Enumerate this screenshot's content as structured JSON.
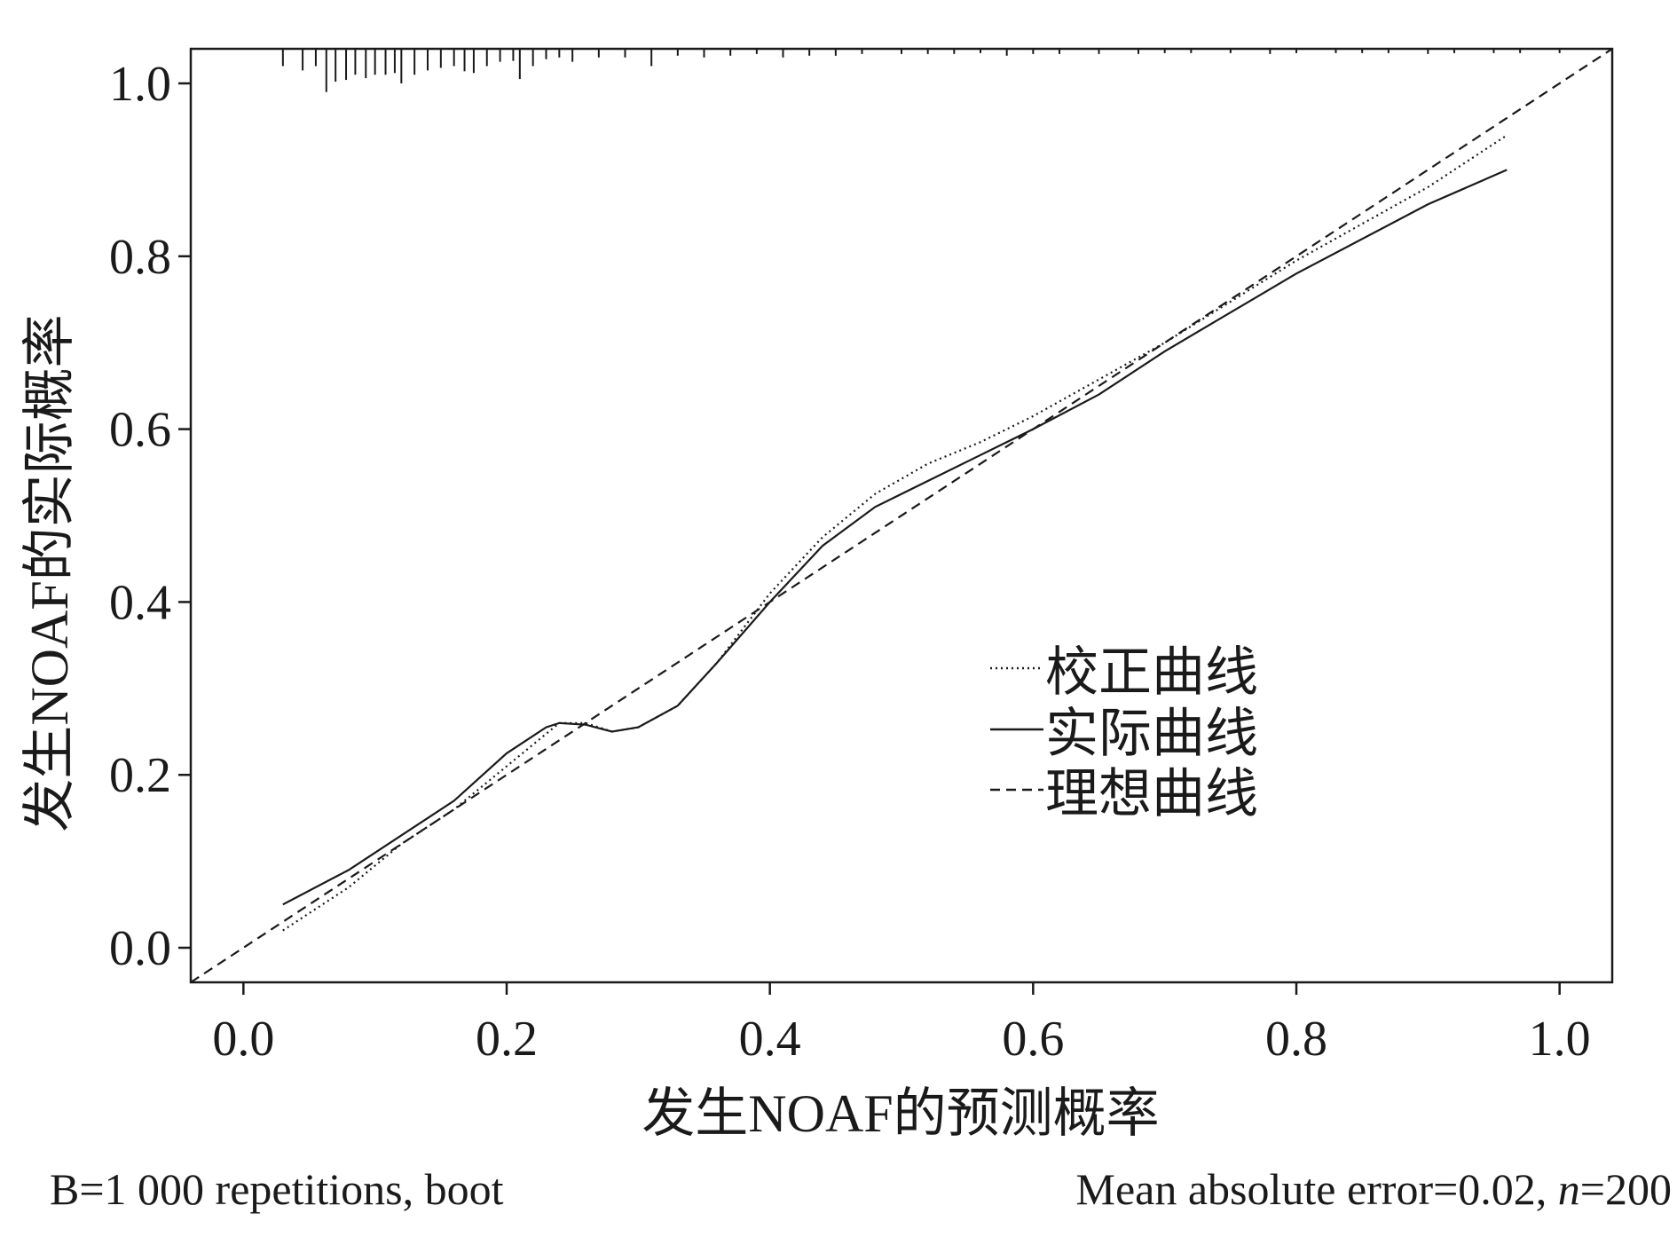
{
  "chart_data": {
    "type": "line",
    "title": "",
    "xlabel": "发生NOAF的预测概率",
    "ylabel": "发生NOAF的实际概率",
    "xlim": [
      -0.04,
      1.04
    ],
    "ylim": [
      -0.04,
      1.04
    ],
    "x_ticks": [
      "0.0",
      "0.2",
      "0.4",
      "0.6",
      "0.8",
      "1.0"
    ],
    "y_ticks": [
      "0.0",
      "0.2",
      "0.4",
      "0.6",
      "0.8",
      "1.0"
    ],
    "grid": false,
    "legend_position": "center-right",
    "series": [
      {
        "name": "校正曲线",
        "style": "dotted",
        "color": "#1a1a1a",
        "points": [
          [
            0.03,
            0.02
          ],
          [
            0.08,
            0.07
          ],
          [
            0.12,
            0.12
          ],
          [
            0.16,
            0.16
          ],
          [
            0.2,
            0.21
          ],
          [
            0.24,
            0.26
          ],
          [
            0.26,
            0.26
          ],
          [
            0.28,
            0.25
          ],
          [
            0.3,
            0.255
          ],
          [
            0.33,
            0.28
          ],
          [
            0.36,
            0.33
          ],
          [
            0.4,
            0.41
          ],
          [
            0.44,
            0.475
          ],
          [
            0.48,
            0.525
          ],
          [
            0.52,
            0.56
          ],
          [
            0.56,
            0.585
          ],
          [
            0.6,
            0.615
          ],
          [
            0.7,
            0.7
          ],
          [
            0.8,
            0.795
          ],
          [
            0.9,
            0.88
          ],
          [
            0.96,
            0.94
          ]
        ]
      },
      {
        "name": "实际曲线",
        "style": "solid",
        "color": "#1a1a1a",
        "points": [
          [
            0.03,
            0.05
          ],
          [
            0.08,
            0.09
          ],
          [
            0.12,
            0.13
          ],
          [
            0.16,
            0.17
          ],
          [
            0.2,
            0.225
          ],
          [
            0.23,
            0.255
          ],
          [
            0.24,
            0.26
          ],
          [
            0.26,
            0.258
          ],
          [
            0.28,
            0.25
          ],
          [
            0.3,
            0.255
          ],
          [
            0.33,
            0.28
          ],
          [
            0.36,
            0.33
          ],
          [
            0.4,
            0.4
          ],
          [
            0.44,
            0.465
          ],
          [
            0.48,
            0.51
          ],
          [
            0.52,
            0.54
          ],
          [
            0.56,
            0.57
          ],
          [
            0.6,
            0.6
          ],
          [
            0.65,
            0.64
          ],
          [
            0.7,
            0.69
          ],
          [
            0.8,
            0.78
          ],
          [
            0.9,
            0.86
          ],
          [
            0.96,
            0.9
          ]
        ]
      },
      {
        "name": "理想曲线",
        "style": "dashed",
        "color": "#1a1a1a",
        "points": [
          [
            -0.04,
            -0.04
          ],
          [
            1.04,
            1.04
          ]
        ]
      }
    ],
    "rug": {
      "position": "top",
      "x": [
        0.03,
        0.045,
        0.055,
        0.063,
        0.07,
        0.078,
        0.085,
        0.093,
        0.1,
        0.108,
        0.115,
        0.12,
        0.13,
        0.14,
        0.15,
        0.16,
        0.168,
        0.175,
        0.185,
        0.195,
        0.205,
        0.21,
        0.22,
        0.23,
        0.24,
        0.25,
        0.27,
        0.29,
        0.31,
        0.33,
        0.35,
        0.37,
        0.39,
        0.41,
        0.43,
        0.45,
        0.47,
        0.5,
        0.52,
        0.54,
        0.56,
        0.58,
        0.6,
        0.62,
        0.65,
        0.68,
        0.7,
        0.72,
        0.75,
        0.78,
        0.8,
        0.83,
        0.85,
        0.87,
        0.9,
        0.92,
        0.95,
        0.97,
        1.0
      ],
      "lengths": [
        0.02,
        0.025,
        0.02,
        0.05,
        0.038,
        0.036,
        0.03,
        0.034,
        0.03,
        0.03,
        0.028,
        0.04,
        0.03,
        0.025,
        0.022,
        0.02,
        0.026,
        0.028,
        0.02,
        0.015,
        0.014,
        0.035,
        0.02,
        0.012,
        0.01,
        0.015,
        0.01,
        0.01,
        0.02,
        0.008,
        0.01,
        0.008,
        0.006,
        0.01,
        0.008,
        0.008,
        0.006,
        0.006,
        0.006,
        0.006,
        0.005,
        0.008,
        0.006,
        0.006,
        0.006,
        0.006,
        0.005,
        0.005,
        0.005,
        0.006,
        0.005,
        0.005,
        0.005,
        0.005,
        0.006,
        0.005,
        0.005,
        0.005,
        0.005
      ]
    },
    "footnote_left": "B=1 000 repetitions, boot",
    "footnote_right": {
      "prefix": "Mean absolute error=0.02, ",
      "italic": "n",
      "suffix": "=200"
    }
  }
}
